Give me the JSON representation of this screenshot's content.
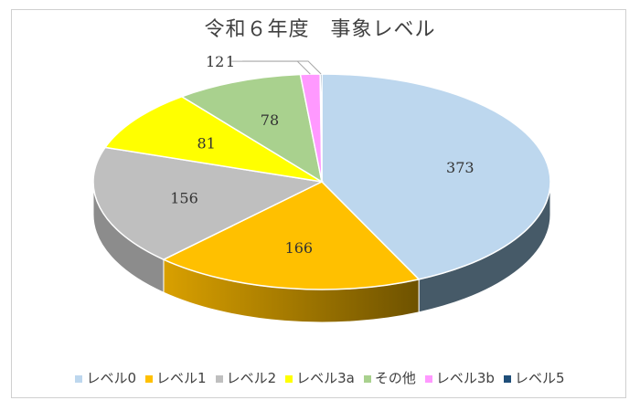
{
  "chart_data": {
    "type": "pie",
    "title": "令和６年度　事象レベル",
    "style": "3d-pie",
    "legend_position": "bottom",
    "categories": [
      "レベル0",
      "レベル1",
      "レベル2",
      "レベル3a",
      "その他",
      "レベル3b",
      "レベル5"
    ],
    "values": [
      373,
      166,
      156,
      81,
      78,
      12,
      1
    ],
    "colors": [
      "#BDD7EE",
      "#FFC000",
      "#BFBFBF",
      "#FFFF00",
      "#A9D18E",
      "#FF99FF",
      "#1F4E79"
    ]
  }
}
